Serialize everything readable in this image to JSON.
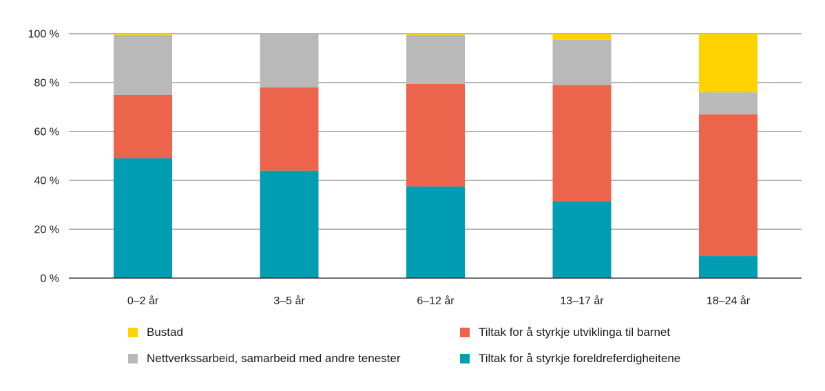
{
  "chart_data": {
    "type": "bar",
    "stacked": true,
    "categories": [
      "0–2 år",
      "3–5 år",
      "6–12 år",
      "13–17 år",
      "18–24 år"
    ],
    "series": [
      {
        "name": "Tiltak for å styrkje foreldreferdigheitene",
        "color": "#009db3",
        "values": [
          49,
          44,
          37.5,
          31.5,
          9
        ]
      },
      {
        "name": "Tiltak for å styrkje utviklinga til barnet",
        "color": "#eb644b",
        "values": [
          26,
          34,
          42,
          47.5,
          58
        ]
      },
      {
        "name": "Nettverkssarbeid, samarbeid med andre tenester",
        "color": "#b9b9b9",
        "values": [
          24.5,
          22,
          20,
          18.5,
          9
        ]
      },
      {
        "name": "Bustad",
        "color": "#ffd200",
        "values": [
          0.5,
          0,
          0.5,
          2.5,
          24
        ]
      }
    ],
    "y_ticks": [
      "0 %",
      "20 %",
      "40 %",
      "60 %",
      "80 %",
      "100 %"
    ],
    "ylim": [
      0,
      100
    ],
    "grid": true,
    "legend_placement": "bottom",
    "title": "",
    "xlabel": "",
    "ylabel": ""
  }
}
